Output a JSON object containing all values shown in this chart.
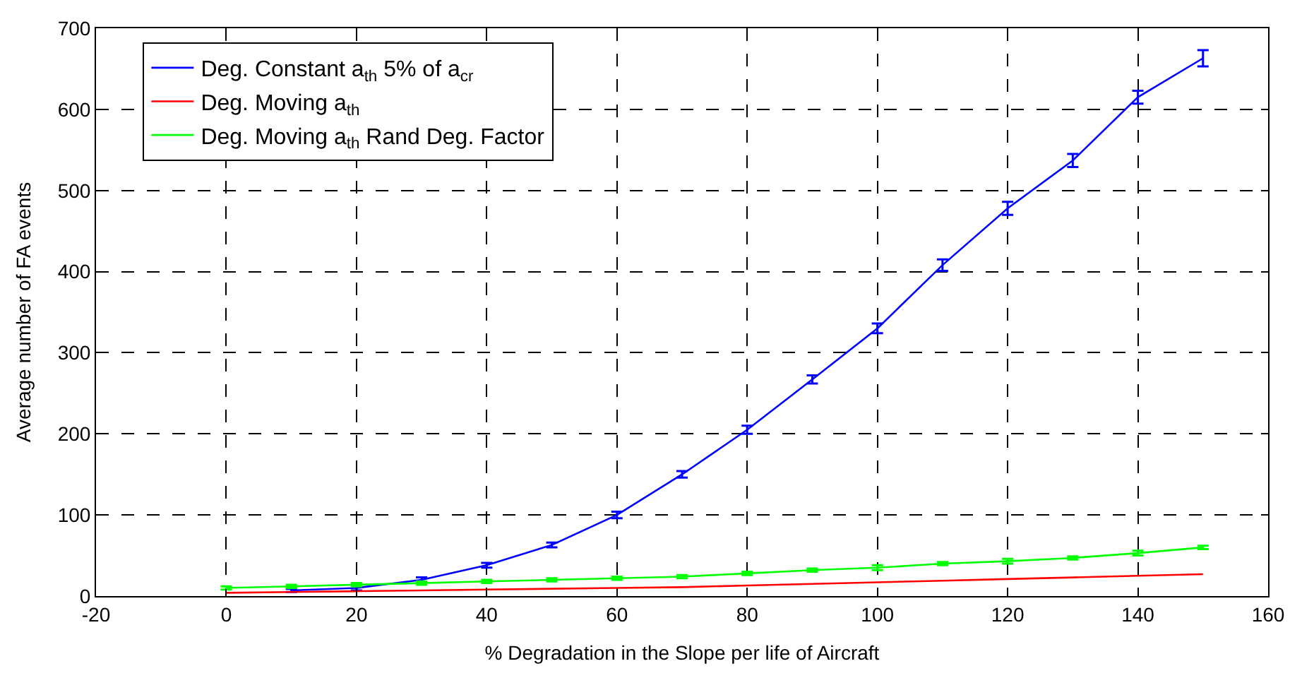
{
  "chart_data": {
    "type": "line",
    "xlabel": "% Degradation in the Slope per life of Aircraft",
    "ylabel": "Average number of FA events",
    "xlim": [
      -20,
      160
    ],
    "xticks": [
      -20,
      0,
      20,
      40,
      60,
      80,
      100,
      120,
      140,
      160
    ],
    "ylim": [
      0,
      700
    ],
    "yticks": [
      0,
      100,
      200,
      300,
      400,
      500,
      600,
      700
    ],
    "grid": true,
    "legend": "top left",
    "line_style": "solid",
    "series": [
      {
        "name": "Deg. Constant a$_{th}$ 5% of a$_{cr}$",
        "color": "#0000ff",
        "x": [
          10,
          20,
          30,
          40,
          50,
          60,
          70,
          80,
          90,
          100,
          110,
          120,
          130,
          140,
          150
        ],
        "values": [
          7,
          10,
          20,
          38,
          63,
          100,
          150,
          205,
          267,
          330,
          408,
          478,
          537,
          615,
          663
        ],
        "errors": [
          2,
          3,
          3,
          3,
          3,
          4,
          4,
          5,
          5,
          6,
          7,
          8,
          8,
          8,
          10
        ]
      },
      {
        "name": "Deg. Moving a$_{th}$",
        "color": "#ff0000",
        "x": [
          0,
          10,
          20,
          30,
          40,
          50,
          60,
          70,
          80,
          90,
          100,
          110,
          120,
          130,
          140,
          150
        ],
        "values": [
          4,
          5,
          6,
          7,
          8,
          9,
          10,
          11,
          13,
          15,
          17,
          19,
          21,
          23,
          25,
          27
        ]
      },
      {
        "name": "Deg. Moving a$_{th}$ Rand Deg. Factor",
        "color": "#00ff00",
        "x": [
          0,
          10,
          20,
          30,
          40,
          50,
          60,
          70,
          80,
          90,
          100,
          110,
          120,
          130,
          140,
          150
        ],
        "values": [
          10,
          12,
          14,
          16,
          18,
          20,
          22,
          24,
          28,
          32,
          35,
          40,
          43,
          47,
          53,
          60
        ],
        "errors": [
          2,
          2,
          2,
          2,
          2,
          2,
          2,
          2,
          2,
          2,
          3,
          2,
          3,
          2,
          3,
          2
        ]
      }
    ]
  }
}
